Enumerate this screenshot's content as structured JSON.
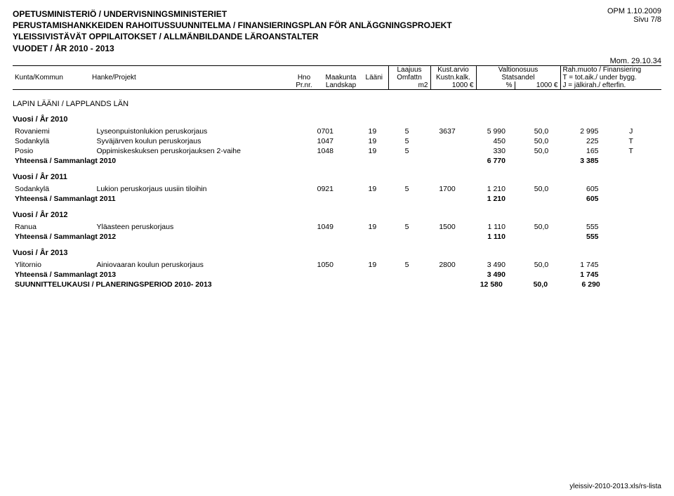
{
  "meta": {
    "opm_date": "OPM 1.10.2009",
    "page": "Sivu 7/8",
    "footer": "yleissiv-2010-2013.xls/rs-lista"
  },
  "header": {
    "line1": "OPETUSMINISTERIÖ / UNDERVISNINGSMINISTERIET",
    "line2": "PERUSTAMISHANKKEIDEN RAHOITUSSUUNNITELMA / FINANSIERINGSPLAN FÖR ANLÄGGNINGSPROJEKT",
    "line3": "YLEISSIVISTÄVÄT OPPILAITOKSET / ALLMÄNBILDANDE LÄROANSTALTER",
    "line4": "VUODET / ÅR 2010 - 2013",
    "mom": "Mom. 29.10.34"
  },
  "col_headers": {
    "r1": {
      "laajuus": "Laajuus",
      "kust": "Kust.arvio",
      "valt": "Valtionosuus",
      "rah": "Rah.muoto / Finansiering"
    },
    "r2": {
      "kunta": "Kunta/Kommun",
      "hanke": "Hanke/Projekt",
      "hno": "Hno",
      "mk": "Maakunta",
      "laani": "Lääni",
      "omf": "Omfattn",
      "kalk": "Kustn.kalk.",
      "stat": "Statsandel",
      "tot": "T = tot.aik./ under bygg."
    },
    "r3": {
      "prnr": "Pr.nr.",
      "landskap": "Landskap",
      "m2": "m2",
      "e1": "1000 €",
      "pct": "%",
      "e2": "1000 €",
      "j": "J = jälkirah./ efterfin."
    }
  },
  "region": "LAPIN  LÄÄNI / LAPPLANDS LÄN",
  "years": {
    "2010": {
      "title": "Vuosi / År 2010",
      "rows": [
        {
          "kunta": "Rovaniemi",
          "hanke": "Lyseonpuistonlukion peruskorjaus",
          "hno": "0701",
          "mk": "19",
          "laani": "5",
          "omf": "3637",
          "kust": "5 990",
          "pct": "50,0",
          "stat": "2 995",
          "rah": "J"
        },
        {
          "kunta": "Sodankylä",
          "hanke": "Syväjärven koulun peruskorjaus",
          "hno": "1047",
          "mk": "19",
          "laani": "5",
          "omf": "",
          "kust": "450",
          "pct": "50,0",
          "stat": "225",
          "rah": "T"
        },
        {
          "kunta": "Posio",
          "hanke": "Oppimiskeskuksen peruskorjauksen 2-vaihe",
          "hno": "1048",
          "mk": "19",
          "laani": "5",
          "omf": "",
          "kust": "330",
          "pct": "50,0",
          "stat": "165",
          "rah": "T"
        }
      ],
      "sum": {
        "label": "Yhteensä / Sammanlagt 2010",
        "kust": "6 770",
        "stat": "3 385"
      }
    },
    "2011": {
      "title": "Vuosi / År 2011",
      "rows": [
        {
          "kunta": "Sodankylä",
          "hanke": "Lukion peruskorjaus uusiin tiloihin",
          "hno": "0921",
          "mk": "19",
          "laani": "5",
          "omf": "1700",
          "kust": "1 210",
          "pct": "50,0",
          "stat": "605",
          "rah": ""
        }
      ],
      "sum": {
        "label": "Yhteensä / Sammanlagt 2011",
        "kust": "1 210",
        "stat": "605"
      }
    },
    "2012": {
      "title": "Vuosi / År 2012",
      "rows": [
        {
          "kunta": "Ranua",
          "hanke": "Yläasteen peruskorjaus",
          "hno": "1049",
          "mk": "19",
          "laani": "5",
          "omf": "1500",
          "kust": "1 110",
          "pct": "50,0",
          "stat": "555",
          "rah": ""
        }
      ],
      "sum": {
        "label": "Yhteensä / Sammanlagt 2012",
        "kust": "1 110",
        "stat": "555"
      }
    },
    "2013": {
      "title": "Vuosi / År 2013",
      "rows": [
        {
          "kunta": "Ylitornio",
          "hanke": "Ainiovaaran koulun peruskorjaus",
          "hno": "1050",
          "mk": "19",
          "laani": "5",
          "omf": "2800",
          "kust": "3 490",
          "pct": "50,0",
          "stat": "1 745",
          "rah": ""
        }
      ],
      "sum": {
        "label": "Yhteensä / Sammanlagt 2013",
        "kust": "3 490",
        "stat": "1 745"
      }
    }
  },
  "grand": {
    "label": "SUUNNITTELUKAUSI / PLANERINGSPERIOD 2010- 2013",
    "kust": "12 580",
    "pct": "50,0",
    "stat": "6 290"
  }
}
